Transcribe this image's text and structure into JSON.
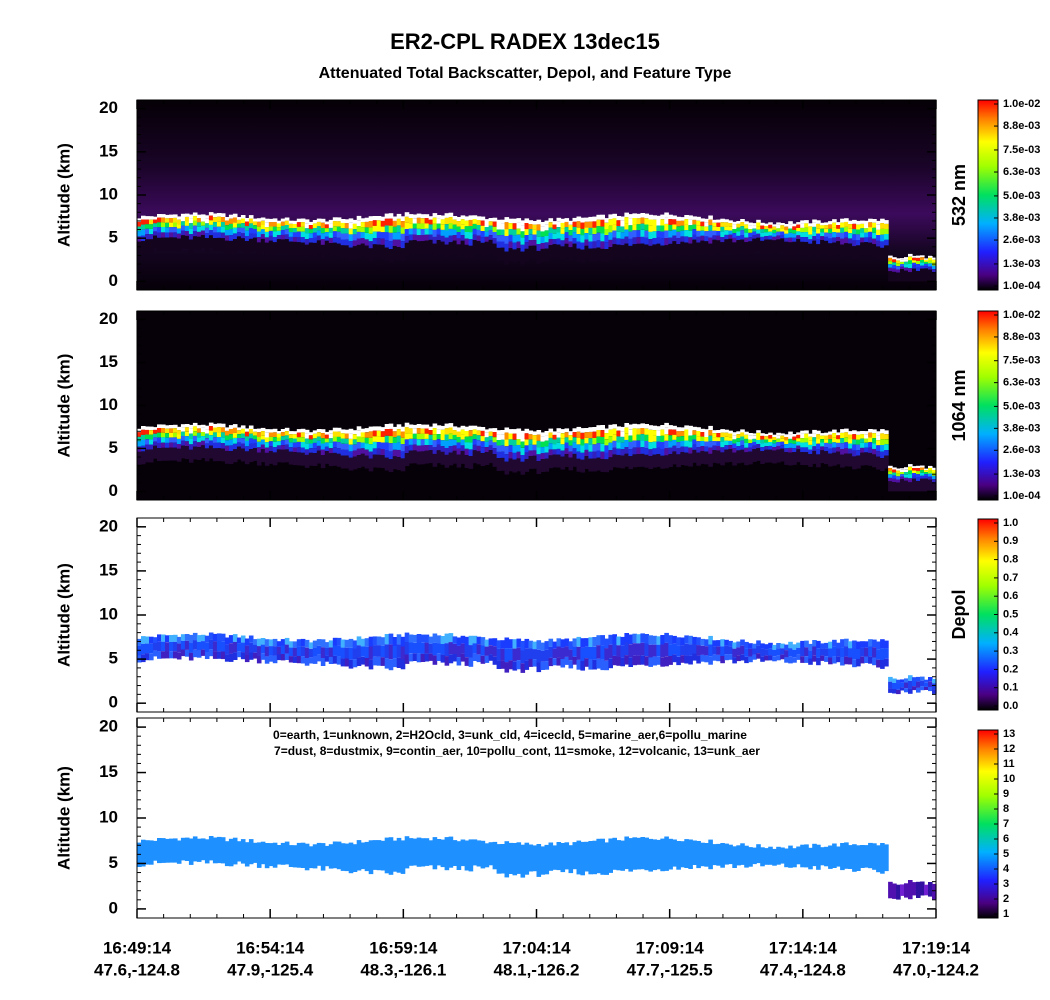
{
  "title": "ER2-CPL RADEX 13dec15",
  "subtitle": "Attenuated Total Backscatter, Depol, and Feature Type",
  "chart_data": [
    {
      "type": "heatmap",
      "ylabel": "Altitude (km)",
      "ylim": [
        -1,
        21
      ],
      "yticks": [
        0,
        5,
        10,
        15,
        20
      ],
      "colorbar": {
        "label": "532 nm",
        "clim": [
          0.0001,
          0.01
        ],
        "ticks": [
          {
            "value": 0.0001,
            "label": "1.0e-04"
          },
          {
            "value": 0.0013,
            "label": "1.3e-03"
          },
          {
            "value": 0.0026,
            "label": "2.6e-03"
          },
          {
            "value": 0.0038,
            "label": "3.8e-03"
          },
          {
            "value": 0.005,
            "label": "5.0e-03"
          },
          {
            "value": 0.0063,
            "label": "6.3e-03"
          },
          {
            "value": 0.0075,
            "label": "7.5e-03"
          },
          {
            "value": 0.0088,
            "label": "8.8e-03"
          },
          {
            "value": 0.01,
            "label": "1.0e-02"
          }
        ]
      }
    },
    {
      "type": "heatmap",
      "ylabel": "Altitude (km)",
      "ylim": [
        -1,
        21
      ],
      "yticks": [
        0,
        5,
        10,
        15,
        20
      ],
      "colorbar": {
        "label": "1064 nm",
        "clim": [
          0.0001,
          0.01
        ],
        "ticks": [
          {
            "value": 0.0001,
            "label": "1.0e-04"
          },
          {
            "value": 0.0013,
            "label": "1.3e-03"
          },
          {
            "value": 0.0026,
            "label": "2.6e-03"
          },
          {
            "value": 0.0038,
            "label": "3.8e-03"
          },
          {
            "value": 0.005,
            "label": "5.0e-03"
          },
          {
            "value": 0.0063,
            "label": "6.3e-03"
          },
          {
            "value": 0.0075,
            "label": "7.5e-03"
          },
          {
            "value": 0.0088,
            "label": "8.8e-03"
          },
          {
            "value": 0.01,
            "label": "1.0e-02"
          }
        ]
      }
    },
    {
      "type": "heatmap",
      "ylabel": "Altitude (km)",
      "ylim": [
        -1,
        21
      ],
      "yticks": [
        0,
        5,
        10,
        15,
        20
      ],
      "colorbar": {
        "label": "Depol",
        "clim": [
          0,
          1
        ],
        "ticks": [
          {
            "value": 0,
            "label": "0.0"
          },
          0.1,
          0.2,
          0.3,
          0.4,
          0.5,
          0.6,
          0.7,
          0.8,
          0.9,
          {
            "value": 1,
            "label": "1.0"
          }
        ]
      }
    },
    {
      "type": "heatmap",
      "ylabel": "Altitude (km)",
      "ylim": [
        -1,
        21
      ],
      "yticks": [
        0,
        5,
        10,
        15,
        20
      ],
      "annotations": [
        "0=earth, 1=unknown, 2=H2Ocld, 3=unk_cld, 4=icecld, 5=marine_aer,6=pollu_marine",
        "7=dust, 8=dustmix, 9=contin_aer, 10=pollu_cont, 11=smoke, 12=volcanic, 13=unk_aer"
      ],
      "colorbar": {
        "clim": [
          1,
          13
        ],
        "ticks": [
          1,
          2,
          3,
          4,
          5,
          6,
          7,
          8,
          9,
          10,
          11,
          12,
          13
        ]
      },
      "categories": [
        "16:49:14",
        "16:54:14",
        "16:59:14",
        "17:04:14",
        "17:09:14",
        "17:14:14",
        "17:19:14"
      ],
      "category_locations": [
        "47.6,-124.8",
        "47.9,-125.4",
        "48.3,-126.1",
        "48.1,-126.2",
        "47.7,-125.5",
        "47.4,-124.8",
        "47.0,-124.2"
      ]
    }
  ]
}
